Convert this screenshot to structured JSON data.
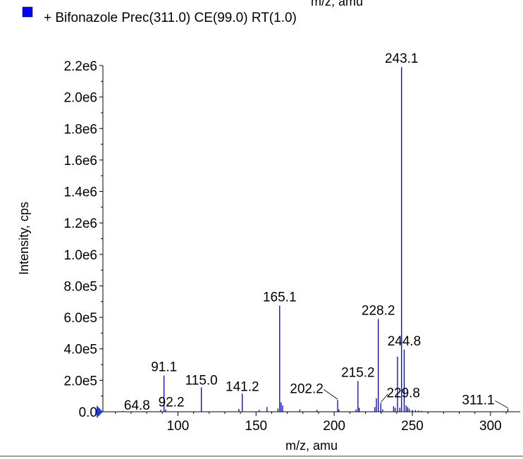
{
  "chart_data": {
    "type": "bar",
    "top_cut_label": "m/z, amu",
    "legend": {
      "text": "+ Bifonazole Prec(311.0) CE(99.0) RT(1.0)",
      "color": "#0000ff"
    },
    "xlabel": "m/z, amu",
    "ylabel": "Intensity, cps",
    "xlim": [
      52,
      319
    ],
    "ylim": [
      0,
      2200000
    ],
    "x_ticks": [
      {
        "value": 100,
        "label": "100"
      },
      {
        "value": 150,
        "label": "150"
      },
      {
        "value": 200,
        "label": "200"
      },
      {
        "value": 250,
        "label": "250"
      },
      {
        "value": 300,
        "label": "300"
      }
    ],
    "y_ticks": [
      {
        "value": 0,
        "label": "0.0"
      },
      {
        "value": 200000,
        "label": "2.0e5"
      },
      {
        "value": 400000,
        "label": "4.0e5"
      },
      {
        "value": 600000,
        "label": "6.0e5"
      },
      {
        "value": 800000,
        "label": "8.0e5"
      },
      {
        "value": 1000000,
        "label": "1.0e6"
      },
      {
        "value": 1200000,
        "label": "1.2e6"
      },
      {
        "value": 1400000,
        "label": "1.4e6"
      },
      {
        "value": 1600000,
        "label": "1.6e6"
      },
      {
        "value": 1800000,
        "label": "1.8e6"
      },
      {
        "value": 2000000,
        "label": "2.0e6"
      },
      {
        "value": 2200000,
        "label": "2.2e6"
      }
    ],
    "peak_color": "#0000cc",
    "peaks": [
      {
        "x": 64.8,
        "y": 5000
      },
      {
        "x": 89.0,
        "y": 12000
      },
      {
        "x": 91.1,
        "y": 230000
      },
      {
        "x": 92.2,
        "y": 15000
      },
      {
        "x": 115.0,
        "y": 155000
      },
      {
        "x": 139.0,
        "y": 18000
      },
      {
        "x": 141.2,
        "y": 115000
      },
      {
        "x": 152.0,
        "y": 12000
      },
      {
        "x": 157.0,
        "y": 30000
      },
      {
        "x": 164.0,
        "y": 20000
      },
      {
        "x": 165.1,
        "y": 675000
      },
      {
        "x": 166.0,
        "y": 60000
      },
      {
        "x": 167.0,
        "y": 40000
      },
      {
        "x": 178.0,
        "y": 15000
      },
      {
        "x": 189.0,
        "y": 12000
      },
      {
        "x": 202.2,
        "y": 75000
      },
      {
        "x": 203.0,
        "y": 15000
      },
      {
        "x": 214.0,
        "y": 15000
      },
      {
        "x": 215.2,
        "y": 195000
      },
      {
        "x": 216.0,
        "y": 25000
      },
      {
        "x": 226.0,
        "y": 30000
      },
      {
        "x": 227.0,
        "y": 85000
      },
      {
        "x": 228.2,
        "y": 590000
      },
      {
        "x": 229.8,
        "y": 55000
      },
      {
        "x": 231.0,
        "y": 15000
      },
      {
        "x": 238.0,
        "y": 35000
      },
      {
        "x": 239.0,
        "y": 25000
      },
      {
        "x": 240.5,
        "y": 350000
      },
      {
        "x": 242.0,
        "y": 25000
      },
      {
        "x": 243.1,
        "y": 2190000
      },
      {
        "x": 244.8,
        "y": 395000
      },
      {
        "x": 246.0,
        "y": 40000
      },
      {
        "x": 247.0,
        "y": 30000
      },
      {
        "x": 248.0,
        "y": 20000
      },
      {
        "x": 250.0,
        "y": 12000
      },
      {
        "x": 252.0,
        "y": 10000
      },
      {
        "x": 254.0,
        "y": 8000
      },
      {
        "x": 256.0,
        "y": 6000
      },
      {
        "x": 311.1,
        "y": 20000
      }
    ],
    "peak_labels": [
      {
        "label": "64.8",
        "x": 64.8,
        "y": 5000
      },
      {
        "label": "91.1",
        "x": 91.1,
        "y": 230000
      },
      {
        "label": "92.2",
        "x": 92.2,
        "y": 15000
      },
      {
        "label": "115.0",
        "x": 115.0,
        "y": 155000
      },
      {
        "label": "141.2",
        "x": 141.2,
        "y": 115000
      },
      {
        "label": "165.1",
        "x": 165.1,
        "y": 675000
      },
      {
        "label": "202.2",
        "x": 202.2,
        "y": 75000
      },
      {
        "label": "215.2",
        "x": 215.2,
        "y": 195000
      },
      {
        "label": "228.2",
        "x": 228.2,
        "y": 590000
      },
      {
        "label": "229.8",
        "x": 229.8,
        "y": 55000
      },
      {
        "label": "243.1",
        "x": 243.1,
        "y": 2190000
      },
      {
        "label": "244.8",
        "x": 244.8,
        "y": 395000
      },
      {
        "label": "311.1",
        "x": 311.1,
        "y": 20000
      }
    ]
  }
}
